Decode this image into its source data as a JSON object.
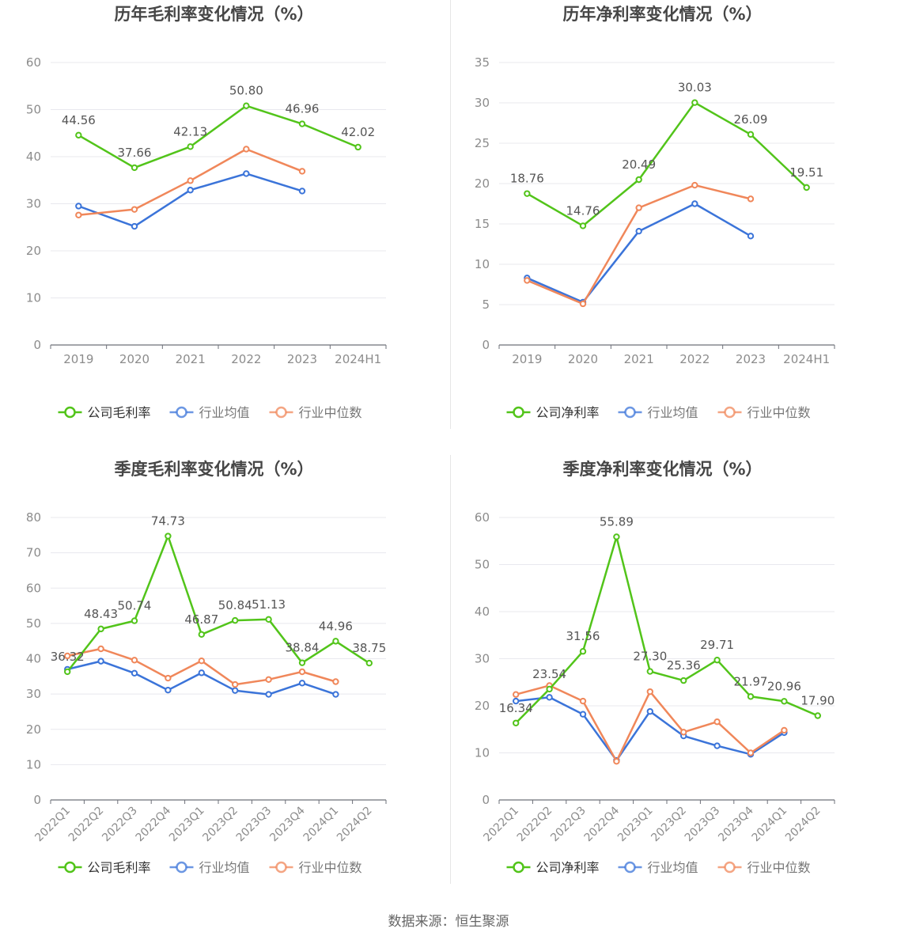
{
  "source_text": "数据来源：恒生聚源",
  "colors": {
    "company": "#52c41a",
    "avg": "#3b74d9",
    "median": "#f0875a",
    "grid": "#e8e8ee",
    "axis": "#6e7079",
    "tick": "#8c8c8c",
    "title": "#464646"
  },
  "chart_data": [
    {
      "type": "line",
      "title": "历年毛利率变化情况（%）",
      "categories": [
        "2019",
        "2020",
        "2021",
        "2022",
        "2023",
        "2024H1"
      ],
      "ylim": [
        0,
        60
      ],
      "yticks": [
        0,
        10,
        20,
        30,
        40,
        50,
        60
      ],
      "rotate_x": false,
      "legend": "bottom-center",
      "series": [
        {
          "name": "公司毛利率",
          "role": "company",
          "labels": true,
          "values": [
            44.56,
            37.66,
            42.13,
            50.8,
            46.96,
            42.02
          ]
        },
        {
          "name": "行业均值",
          "role": "avg",
          "labels": false,
          "values": [
            29.5,
            25.2,
            32.9,
            36.4,
            32.7,
            null
          ]
        },
        {
          "name": "行业中位数",
          "role": "median",
          "labels": false,
          "values": [
            27.6,
            28.8,
            34.9,
            41.6,
            36.9,
            null
          ]
        }
      ]
    },
    {
      "type": "line",
      "title": "历年净利率变化情况（%）",
      "categories": [
        "2019",
        "2020",
        "2021",
        "2022",
        "2023",
        "2024H1"
      ],
      "ylim": [
        0,
        35
      ],
      "yticks": [
        0,
        5,
        10,
        15,
        20,
        25,
        30,
        35
      ],
      "rotate_x": false,
      "legend": "bottom-center",
      "series": [
        {
          "name": "公司净利率",
          "role": "company",
          "labels": true,
          "values": [
            18.76,
            14.76,
            20.49,
            30.03,
            26.09,
            19.51
          ]
        },
        {
          "name": "行业均值",
          "role": "avg",
          "labels": false,
          "values": [
            8.3,
            5.3,
            14.1,
            17.5,
            13.5,
            null
          ]
        },
        {
          "name": "行业中位数",
          "role": "median",
          "labels": false,
          "values": [
            8.0,
            5.1,
            17.0,
            19.8,
            18.1,
            null
          ]
        }
      ]
    },
    {
      "type": "line",
      "title": "季度毛利率变化情况（%）",
      "categories": [
        "2022Q1",
        "2022Q2",
        "2022Q3",
        "2022Q4",
        "2023Q1",
        "2023Q2",
        "2023Q3",
        "2023Q4",
        "2024Q1",
        "2024Q2"
      ],
      "ylim": [
        0,
        80
      ],
      "yticks": [
        0,
        10,
        20,
        30,
        40,
        50,
        60,
        70,
        80
      ],
      "rotate_x": true,
      "legend": "bottom-center",
      "series": [
        {
          "name": "公司毛利率",
          "role": "company",
          "labels": true,
          "values": [
            36.32,
            48.43,
            50.74,
            74.73,
            46.87,
            50.84,
            51.13,
            38.84,
            44.96,
            38.75
          ]
        },
        {
          "name": "行业均值",
          "role": "avg",
          "labels": false,
          "values": [
            37.0,
            39.3,
            35.9,
            31.1,
            36.0,
            31.0,
            29.9,
            33.1,
            29.9,
            null
          ]
        },
        {
          "name": "行业中位数",
          "role": "median",
          "labels": false,
          "values": [
            40.8,
            42.8,
            39.6,
            34.5,
            39.4,
            32.7,
            34.1,
            36.3,
            33.5,
            null
          ]
        }
      ]
    },
    {
      "type": "line",
      "title": "季度净利率变化情况（%）",
      "categories": [
        "2022Q1",
        "2022Q2",
        "2022Q3",
        "2022Q4",
        "2023Q1",
        "2023Q2",
        "2023Q3",
        "2023Q4",
        "2024Q1",
        "2024Q2"
      ],
      "ylim": [
        0,
        60
      ],
      "yticks": [
        0,
        10,
        20,
        30,
        40,
        50,
        60
      ],
      "rotate_x": true,
      "legend": "bottom-center",
      "series": [
        {
          "name": "公司净利率",
          "role": "company",
          "labels": true,
          "values": [
            16.34,
            23.54,
            31.56,
            55.89,
            27.3,
            25.36,
            29.71,
            21.97,
            20.96,
            17.9
          ]
        },
        {
          "name": "行业均值",
          "role": "avg",
          "labels": false,
          "values": [
            21.0,
            21.8,
            18.2,
            8.4,
            18.8,
            13.6,
            11.5,
            9.7,
            14.3,
            null
          ]
        },
        {
          "name": "行业中位数",
          "role": "median",
          "labels": false,
          "values": [
            22.4,
            24.3,
            21.0,
            8.2,
            23.0,
            14.4,
            16.6,
            10.0,
            14.8,
            null
          ]
        }
      ]
    }
  ]
}
